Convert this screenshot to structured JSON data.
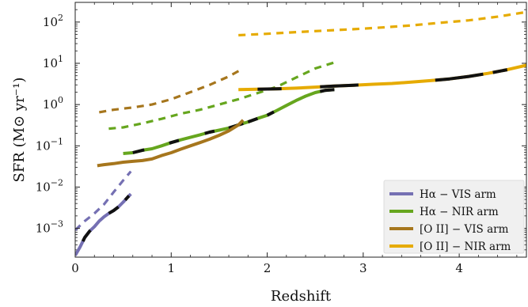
{
  "chart_data": {
    "type": "line",
    "title": "",
    "xlabel": "Redshift",
    "ylabel": "SFR (M⊙ yr⁻¹)",
    "xlim": [
      0,
      4.7
    ],
    "ylim": [
      0.0002,
      300
    ],
    "yscale": "log",
    "x_ticks": [
      0,
      1,
      2,
      3,
      4
    ],
    "y_ticks": [
      {
        "value": 0.001,
        "base": "10",
        "exp": "−3"
      },
      {
        "value": 0.01,
        "base": "10",
        "exp": "−2"
      },
      {
        "value": 0.1,
        "base": "10",
        "exp": "−1"
      },
      {
        "value": 1,
        "base": "10",
        "exp": "0"
      },
      {
        "value": 10,
        "base": "10",
        "exp": "1"
      },
      {
        "value": 100,
        "base": "10",
        "exp": "2"
      }
    ],
    "legend_position": "bottom-right",
    "series": [
      {
        "name": "Hα − VIS arm",
        "color": "#7570b3",
        "solid": [
          [
            0.0,
            0.00022
          ],
          [
            0.05,
            0.00035
          ],
          [
            0.1,
            0.0006
          ],
          [
            0.15,
            0.00085
          ],
          [
            0.2,
            0.0011
          ],
          [
            0.25,
            0.0015
          ],
          [
            0.3,
            0.0019
          ],
          [
            0.35,
            0.0023
          ],
          [
            0.4,
            0.0027
          ],
          [
            0.45,
            0.0033
          ],
          [
            0.5,
            0.0043
          ],
          [
            0.55,
            0.0058
          ],
          [
            0.58,
            0.0068
          ]
        ],
        "dashed": [
          [
            0.0,
            0.0009
          ],
          [
            0.1,
            0.0015
          ],
          [
            0.2,
            0.0023
          ],
          [
            0.3,
            0.0038
          ],
          [
            0.4,
            0.0075
          ],
          [
            0.5,
            0.0145
          ],
          [
            0.58,
            0.024
          ]
        ],
        "black_segments": [
          [
            0.08,
            0.16
          ],
          [
            0.35,
            0.45
          ],
          [
            0.52,
            0.56
          ]
        ]
      },
      {
        "name": "Hα − NIR arm",
        "color": "#66a61e",
        "solid": [
          [
            0.5,
            0.065
          ],
          [
            0.6,
            0.068
          ],
          [
            0.7,
            0.078
          ],
          [
            0.8,
            0.085
          ],
          [
            0.9,
            0.1
          ],
          [
            1.0,
            0.12
          ],
          [
            1.1,
            0.14
          ],
          [
            1.2,
            0.16
          ],
          [
            1.3,
            0.185
          ],
          [
            1.4,
            0.215
          ],
          [
            1.5,
            0.24
          ],
          [
            1.6,
            0.27
          ],
          [
            1.7,
            0.32
          ],
          [
            1.8,
            0.38
          ],
          [
            1.9,
            0.46
          ],
          [
            2.0,
            0.55
          ],
          [
            2.1,
            0.72
          ],
          [
            2.2,
            0.95
          ],
          [
            2.3,
            1.25
          ],
          [
            2.4,
            1.6
          ],
          [
            2.5,
            1.95
          ],
          [
            2.6,
            2.2
          ],
          [
            2.7,
            2.3
          ]
        ],
        "dashed": [
          [
            0.35,
            0.26
          ],
          [
            0.5,
            0.28
          ],
          [
            0.7,
            0.35
          ],
          [
            0.9,
            0.45
          ],
          [
            1.1,
            0.6
          ],
          [
            1.3,
            0.75
          ],
          [
            1.5,
            1.0
          ],
          [
            1.7,
            1.35
          ],
          [
            1.9,
            1.9
          ],
          [
            2.1,
            2.7
          ],
          [
            2.3,
            4.5
          ],
          [
            2.5,
            7.5
          ],
          [
            2.7,
            10.5
          ]
        ],
        "black_segments": [
          [
            0.6,
            0.72
          ],
          [
            0.98,
            1.08
          ],
          [
            1.35,
            1.45
          ],
          [
            1.6,
            1.75
          ],
          [
            1.8,
            1.9
          ],
          [
            2.0,
            2.07
          ],
          [
            2.55,
            2.7
          ]
        ]
      },
      {
        "name": "[O II] − VIS arm",
        "color": "#a6761d",
        "solid": [
          [
            0.23,
            0.033
          ],
          [
            0.3,
            0.035
          ],
          [
            0.4,
            0.037
          ],
          [
            0.5,
            0.04
          ],
          [
            0.6,
            0.042
          ],
          [
            0.7,
            0.044
          ],
          [
            0.8,
            0.048
          ],
          [
            0.9,
            0.058
          ],
          [
            1.0,
            0.068
          ],
          [
            1.1,
            0.083
          ],
          [
            1.2,
            0.1
          ],
          [
            1.3,
            0.12
          ],
          [
            1.4,
            0.145
          ],
          [
            1.5,
            0.18
          ],
          [
            1.6,
            0.23
          ],
          [
            1.7,
            0.32
          ],
          [
            1.75,
            0.42
          ]
        ],
        "dashed": [
          [
            0.25,
            0.65
          ],
          [
            0.4,
            0.75
          ],
          [
            0.6,
            0.85
          ],
          [
            0.8,
            1.0
          ],
          [
            1.0,
            1.35
          ],
          [
            1.2,
            2.0
          ],
          [
            1.4,
            3.0
          ],
          [
            1.6,
            4.8
          ],
          [
            1.75,
            7.5
          ]
        ],
        "black_segments": []
      },
      {
        "name": "[O II] − NIR arm",
        "color": "#e6ab02",
        "solid": [
          [
            1.7,
            2.3
          ],
          [
            1.9,
            2.35
          ],
          [
            2.1,
            2.4
          ],
          [
            2.3,
            2.5
          ],
          [
            2.5,
            2.65
          ],
          [
            2.7,
            2.8
          ],
          [
            2.9,
            2.95
          ],
          [
            3.1,
            3.1
          ],
          [
            3.3,
            3.25
          ],
          [
            3.5,
            3.5
          ],
          [
            3.7,
            3.8
          ],
          [
            3.9,
            4.2
          ],
          [
            4.1,
            4.8
          ],
          [
            4.3,
            5.7
          ],
          [
            4.5,
            7.0
          ],
          [
            4.7,
            9.0
          ]
        ],
        "dashed": [
          [
            1.7,
            48
          ],
          [
            2.0,
            52
          ],
          [
            2.3,
            57
          ],
          [
            2.6,
            62
          ],
          [
            2.9,
            67
          ],
          [
            3.2,
            74
          ],
          [
            3.5,
            83
          ],
          [
            3.8,
            96
          ],
          [
            4.1,
            110
          ],
          [
            4.4,
            135
          ],
          [
            4.7,
            175
          ]
        ],
        "black_segments": [
          [
            1.9,
            2.15
          ],
          [
            2.55,
            2.95
          ],
          [
            3.75,
            4.25
          ],
          [
            4.35,
            4.5
          ]
        ]
      }
    ]
  }
}
